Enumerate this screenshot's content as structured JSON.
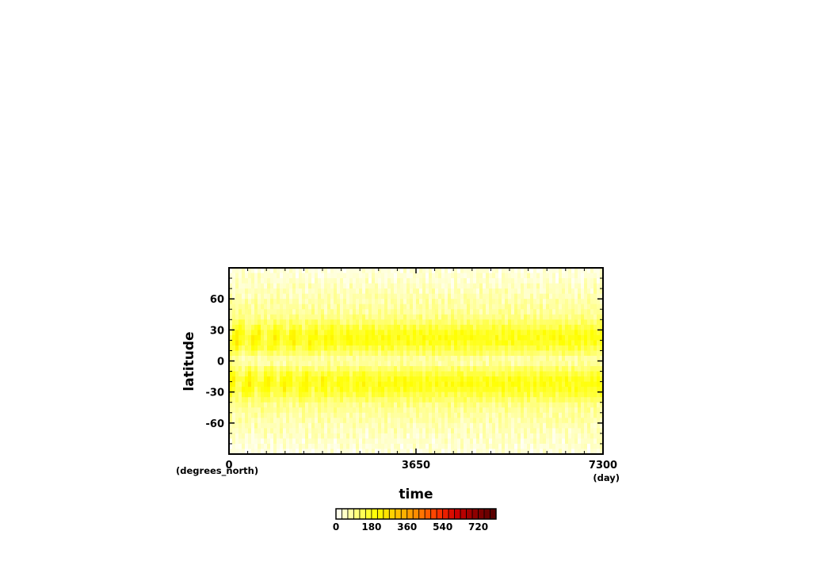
{
  "chart_data": {
    "type": "heatmap",
    "title": "",
    "xlabel": "time",
    "ylabel": "latitude",
    "x_unit": "(day)",
    "y_unit": "(degrees_north)",
    "xlim": [
      0,
      7300
    ],
    "ylim": [
      -90,
      90
    ],
    "x_ticks": [
      0,
      3650,
      7300
    ],
    "x_tick_labels": [
      "0",
      "3650",
      "7300"
    ],
    "y_ticks": [
      60,
      30,
      0,
      -30,
      -60
    ],
    "y_tick_labels": [
      "60",
      "30",
      "0",
      "-30",
      "-60"
    ],
    "field_description": "values mostly 60–240; maxima near ±20° latitude with periodic oscillation in the first ~3000 days; lower near equator and poles",
    "colorbar": {
      "min": 0,
      "max": 810,
      "step": 30,
      "tick_values": [
        0,
        180,
        360,
        540,
        720
      ],
      "tick_labels": [
        "0",
        "180",
        "360",
        "540",
        "720"
      ],
      "colormap": "white-yellow-orange-red-darkred"
    }
  },
  "colors": {
    "frame": "#000000",
    "cmap_stops": [
      "#ffffff",
      "#ffff80",
      "#ffff00",
      "#ffc800",
      "#ff8c00",
      "#ff3c00",
      "#d20000",
      "#8c0000",
      "#500000"
    ]
  }
}
